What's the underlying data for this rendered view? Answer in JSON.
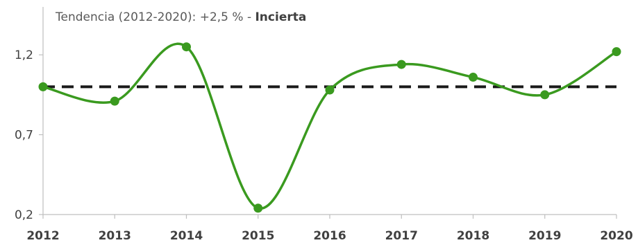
{
  "chart_data": {
    "type": "line",
    "title": {
      "prefix": "Tendencia (2012-2020): +2,5 % - ",
      "emphasis": "Incierta"
    },
    "x": [
      "2012",
      "2013",
      "2014",
      "2015",
      "2016",
      "2017",
      "2018",
      "2019",
      "2020"
    ],
    "series": [
      {
        "values": [
          1.0,
          0.91,
          1.25,
          0.24,
          0.98,
          1.14,
          1.06,
          0.95,
          1.22
        ]
      }
    ],
    "reference_line": {
      "value": 1.0,
      "style": "dashed"
    },
    "ylim": [
      0.2,
      1.5
    ],
    "y_ticks": [
      0.2,
      0.7,
      1.2
    ],
    "y_tick_labels": [
      "0,2",
      "0,7",
      "1,2"
    ],
    "xlabel": "",
    "ylabel": "",
    "grid": false,
    "colors": {
      "series": "#3a9a1f",
      "marker": "#3a9a1f",
      "reference": "#1a1a1a",
      "axis": "#bfbfbf"
    }
  }
}
